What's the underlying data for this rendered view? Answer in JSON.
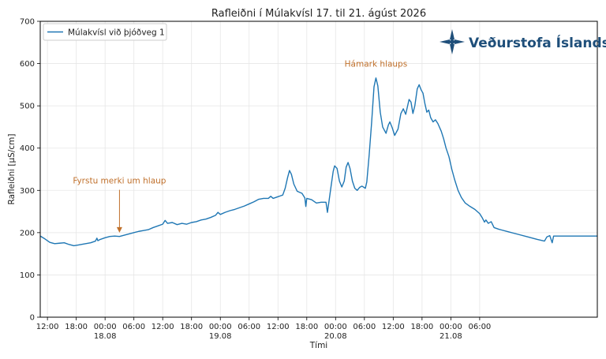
{
  "chart_data": {
    "type": "line",
    "title": "Rafleiðni í Múlakvísl 17. til 21. ágúst 2026",
    "xlabel": "Tími",
    "ylabel": "Rafleiðni [µS/cm]",
    "ylim": [
      0,
      700
    ],
    "yticks": [
      0,
      100,
      200,
      300,
      400,
      500,
      600,
      700
    ],
    "xlim_hours": [
      -1.5,
      114.5
    ],
    "xticks": [
      {
        "h": 0,
        "label": "12:00",
        "date": ""
      },
      {
        "h": 6,
        "label": "18:00",
        "date": ""
      },
      {
        "h": 12,
        "label": "00:00",
        "date": "18.08"
      },
      {
        "h": 18,
        "label": "06:00",
        "date": ""
      },
      {
        "h": 24,
        "label": "12:00",
        "date": ""
      },
      {
        "h": 30,
        "label": "18:00",
        "date": ""
      },
      {
        "h": 36,
        "label": "00:00",
        "date": "19.08"
      },
      {
        "h": 42,
        "label": "06:00",
        "date": ""
      },
      {
        "h": 48,
        "label": "12:00",
        "date": ""
      },
      {
        "h": 54,
        "label": "18:00",
        "date": ""
      },
      {
        "h": 60,
        "label": "00:00",
        "date": "20.08"
      },
      {
        "h": 66,
        "label": "06:00",
        "date": ""
      },
      {
        "h": 72,
        "label": "12:00",
        "date": ""
      },
      {
        "h": 78,
        "label": "18:00",
        "date": ""
      },
      {
        "h": 84,
        "label": "00:00",
        "date": "21.08"
      },
      {
        "h": 90,
        "label": "06:00",
        "date": ""
      }
    ],
    "grid": true,
    "legend_position": "top-left",
    "series": [
      {
        "name": "Múlakvísl við þjóðveg 1",
        "color": "#1f77b4",
        "points": [
          [
            -1.5,
            192
          ],
          [
            -0.5,
            185
          ],
          [
            0.5,
            177
          ],
          [
            1.5,
            174
          ],
          [
            2.5,
            175
          ],
          [
            3.5,
            176
          ],
          [
            4.5,
            172
          ],
          [
            5.5,
            169
          ],
          [
            6.5,
            171
          ],
          [
            7.5,
            173
          ],
          [
            9,
            176
          ],
          [
            10,
            180
          ],
          [
            10.3,
            187
          ],
          [
            10.5,
            181
          ],
          [
            11,
            184
          ],
          [
            12,
            188
          ],
          [
            13,
            191
          ],
          [
            14,
            192
          ],
          [
            15,
            191
          ],
          [
            16,
            194
          ],
          [
            17,
            197
          ],
          [
            18,
            200
          ],
          [
            19,
            203
          ],
          [
            20,
            205
          ],
          [
            21,
            207
          ],
          [
            22,
            212
          ],
          [
            23,
            216
          ],
          [
            24,
            220
          ],
          [
            24.5,
            229
          ],
          [
            25,
            222
          ],
          [
            26,
            224
          ],
          [
            27,
            219
          ],
          [
            28,
            222
          ],
          [
            29,
            220
          ],
          [
            30,
            224
          ],
          [
            31,
            226
          ],
          [
            32,
            230
          ],
          [
            33,
            232
          ],
          [
            34,
            236
          ],
          [
            35,
            241
          ],
          [
            35.5,
            248
          ],
          [
            36,
            243
          ],
          [
            37,
            248
          ],
          [
            38,
            252
          ],
          [
            39,
            255
          ],
          [
            40,
            259
          ],
          [
            41,
            263
          ],
          [
            42,
            268
          ],
          [
            43,
            273
          ],
          [
            44,
            279
          ],
          [
            45,
            281
          ],
          [
            46,
            281
          ],
          [
            46.5,
            286
          ],
          [
            47,
            281
          ],
          [
            48,
            285
          ],
          [
            48.5,
            287
          ],
          [
            49,
            289
          ],
          [
            49.5,
            305
          ],
          [
            50,
            330
          ],
          [
            50.4,
            347
          ],
          [
            50.8,
            338
          ],
          [
            51.3,
            315
          ],
          [
            52,
            298
          ],
          [
            53,
            293
          ],
          [
            53.6,
            282
          ],
          [
            53.8,
            262
          ],
          [
            54,
            281
          ],
          [
            55,
            278
          ],
          [
            56,
            270
          ],
          [
            57,
            272
          ],
          [
            58,
            272
          ],
          [
            58.3,
            248
          ],
          [
            58.6,
            272
          ],
          [
            59,
            305
          ],
          [
            59.5,
            345
          ],
          [
            59.8,
            358
          ],
          [
            60.3,
            352
          ],
          [
            60.8,
            322
          ],
          [
            61.3,
            308
          ],
          [
            61.8,
            322
          ],
          [
            62.2,
            355
          ],
          [
            62.6,
            366
          ],
          [
            63,
            352
          ],
          [
            63.5,
            322
          ],
          [
            64,
            305
          ],
          [
            64.5,
            300
          ],
          [
            65,
            307
          ],
          [
            65.5,
            310
          ],
          [
            66.2,
            305
          ],
          [
            66.5,
            320
          ],
          [
            67,
            385
          ],
          [
            67.5,
            460
          ],
          [
            68,
            545
          ],
          [
            68.4,
            566
          ],
          [
            68.8,
            547
          ],
          [
            69.3,
            485
          ],
          [
            69.8,
            450
          ],
          [
            70.5,
            435
          ],
          [
            71,
            455
          ],
          [
            71.3,
            462
          ],
          [
            71.8,
            448
          ],
          [
            72.3,
            430
          ],
          [
            73,
            445
          ],
          [
            73.6,
            482
          ],
          [
            74.1,
            493
          ],
          [
            74.6,
            480
          ],
          [
            75,
            500
          ],
          [
            75.3,
            515
          ],
          [
            75.7,
            509
          ],
          [
            76.1,
            482
          ],
          [
            76.5,
            500
          ],
          [
            77,
            540
          ],
          [
            77.4,
            550
          ],
          [
            77.8,
            538
          ],
          [
            78.2,
            530
          ],
          [
            78.6,
            505
          ],
          [
            79,
            485
          ],
          [
            79.4,
            490
          ],
          [
            79.8,
            472
          ],
          [
            80.3,
            462
          ],
          [
            80.8,
            467
          ],
          [
            81.3,
            458
          ],
          [
            82,
            440
          ],
          [
            82.5,
            422
          ],
          [
            83,
            400
          ],
          [
            83.6,
            380
          ],
          [
            84.2,
            350
          ],
          [
            84.8,
            325
          ],
          [
            85.5,
            300
          ],
          [
            86.2,
            283
          ],
          [
            87,
            270
          ],
          [
            88,
            262
          ],
          [
            89,
            255
          ],
          [
            90,
            245
          ],
          [
            90.5,
            236
          ],
          [
            91,
            225
          ],
          [
            91.3,
            230
          ],
          [
            91.8,
            222
          ],
          [
            92.4,
            226
          ],
          [
            93,
            212
          ],
          [
            94,
            208
          ],
          [
            96,
            202
          ],
          [
            98,
            196
          ],
          [
            100,
            190
          ],
          [
            102,
            184
          ],
          [
            103.5,
            180
          ],
          [
            104,
            190
          ],
          [
            104.6,
            193
          ],
          [
            105.1,
            176
          ],
          [
            105.4,
            192
          ],
          [
            107,
            192
          ],
          [
            110,
            192
          ],
          [
            112,
            192
          ],
          [
            114.5,
            192
          ]
        ]
      }
    ],
    "annotations": [
      {
        "text": "Fyrstu merki um hlaup",
        "x": 15,
        "y": 200,
        "text_x": 15,
        "text_y": 307,
        "arrow": true,
        "color": "#c0702b"
      },
      {
        "text": "Hámark hlaups",
        "x": 68.4,
        "y": 598,
        "arrow": false,
        "color": "#c0702b"
      }
    ]
  },
  "logo": {
    "text": "Veðurstofa Íslands",
    "color": "#1f4f7a"
  }
}
